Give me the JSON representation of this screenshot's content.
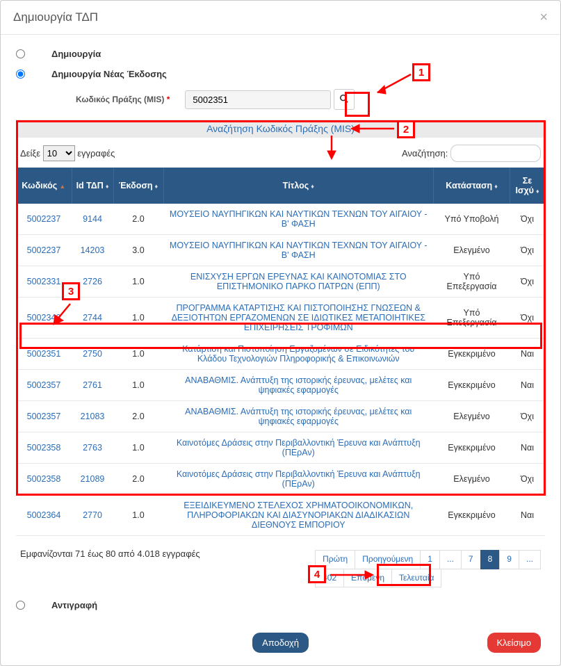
{
  "modal": {
    "title": "Δημιουργία ΤΔΠ",
    "close_glyph": "×"
  },
  "radios": {
    "create_label": "Δημιουργία",
    "new_version_label": "Δημιουργία Νέας Έκδοσης",
    "copy_label": "Αντιγραφή"
  },
  "mis": {
    "label": "Κωδικός Πράξης (MIS)",
    "required_star": "*",
    "value": "5002351",
    "search_icon": "🔍"
  },
  "section": {
    "search_link": "Αναζήτηση Κωδικός Πράξης (MIS)"
  },
  "controls": {
    "show_prefix": "Δείξε",
    "show_count": "10",
    "show_suffix": "εγγραφές",
    "search_label": "Αναζήτηση:"
  },
  "table": {
    "headers": {
      "code": "Κωδικός",
      "id": "Id ΤΔΠ",
      "version": "Έκδοση",
      "title": "Τίτλος",
      "status": "Κατάσταση",
      "valid": "Σε Ισχύ"
    },
    "rows": [
      {
        "code": "5002237",
        "id": "9144",
        "version": "2.0",
        "title": "ΜΟΥΣΕΙΟ ΝΑΥΠΗΓΙΚΩΝ ΚΑΙ ΝΑΥΤΙΚΩΝ ΤΕΧΝΩΝ ΤΟΥ ΑΙΓΑΙΟΥ - Β' ΦΑΣΗ",
        "status": "Υπό Υποβολή",
        "valid": "Όχι"
      },
      {
        "code": "5002237",
        "id": "14203",
        "version": "3.0",
        "title": "ΜΟΥΣΕΙΟ ΝΑΥΠΗΓΙΚΩΝ ΚΑΙ ΝΑΥΤΙΚΩΝ ΤΕΧΝΩΝ ΤΟΥ ΑΙΓΑΙΟΥ - Β' ΦΑΣΗ",
        "status": "Ελεγμένο",
        "valid": "Όχι"
      },
      {
        "code": "5002331",
        "id": "2726",
        "version": "1.0",
        "title": "ΕΝΙΣΧΥΣΗ ΕΡΓΩΝ ΕΡΕΥΝΑΣ ΚΑΙ ΚΑΙΝΟΤΟΜΙΑΣ ΣΤΟ ΕΠΙΣΤΗΜΟΝΙΚΟ ΠΑΡΚΟ ΠΑΤΡΩΝ (ΕΠΠ)",
        "status": "Υπό Επεξεργασία",
        "valid": "Όχι"
      },
      {
        "code": "5002346",
        "id": "2744",
        "version": "1.0",
        "title": "ΠΡΟΓΡΑΜΜΑ ΚΑΤΑΡΤΙΣΗΣ ΚΑΙ ΠΙΣΤΟΠΟΙΗΣΗΣ ΓΝΩΣΕΩΝ & ΔΕΞΙΟΤΗΤΩΝ ΕΡΓΑΖΟΜΕΝΩΝ ΣΕ ΙΔΙΩΤΙΚΕΣ ΜΕΤΑΠΟΙΗΤΙΚΕΣ ΕΠΙΧΕΙΡΗΣΕΙΣ ΤΡΟΦΙΜΩΝ",
        "status": "Υπό Επεξεργασία",
        "valid": "Όχι"
      },
      {
        "code": "5002351",
        "id": "2750",
        "version": "1.0",
        "title": "Κατάρτιση και Πιστοποίηση Εργαζομένων σε Ειδικότητες του Κλάδου Τεχνολογιών Πληροφορικής & Επικοινωνιών",
        "status": "Εγκεκριμένο",
        "valid": "Ναι"
      },
      {
        "code": "5002357",
        "id": "2761",
        "version": "1.0",
        "title": "ΑΝΑΒΑΘΜΙΣ. Ανάπτυξη της ιστορικής έρευνας, μελέτες και ψηφιακές εφαρμογές",
        "status": "Εγκεκριμένο",
        "valid": "Ναι"
      },
      {
        "code": "5002357",
        "id": "21083",
        "version": "2.0",
        "title": "ΑΝΑΒΑΘΜΙΣ. Ανάπτυξη της ιστορικής έρευνας, μελέτες και ψηφιακές εφαρμογές",
        "status": "Ελεγμένο",
        "valid": "Όχι"
      },
      {
        "code": "5002358",
        "id": "2763",
        "version": "1.0",
        "title": "Καινοτόμες Δράσεις στην Περιβαλλοντική Έρευνα και Ανάπτυξη (ΠΕρΑν)",
        "status": "Εγκεκριμένο",
        "valid": "Ναι"
      },
      {
        "code": "5002358",
        "id": "21089",
        "version": "2.0",
        "title": "Καινοτόμες Δράσεις στην Περιβαλλοντική Έρευνα και Ανάπτυξη (ΠΕρΑν)",
        "status": "Ελεγμένο",
        "valid": "Όχι"
      },
      {
        "code": "5002364",
        "id": "2770",
        "version": "1.0",
        "title": "ΕΞΕΙΔΙΚΕΥΜΕΝΟ ΣΤΕΛΕΧΟΣ ΧΡΗΜΑΤΟΟΙΚΟΝΟΜΙΚΩΝ, ΠΛΗΡΟΦΟΡΙΑΚΩΝ ΚΑΙ ΔΙΑΣΥΝΟΡΙΑΚΩΝ ΔΙΑΔΙΚΑΣΙΩΝ ΔΙΕΘΝΟΥΣ ΕΜΠΟΡΙΟΥ",
        "status": "Εγκεκριμένο",
        "valid": "Ναι"
      }
    ]
  },
  "footer": {
    "info": "Εμφανίζονται 71 έως 80 από 4.018 εγγραφές",
    "pagination": {
      "first": "Πρώτη",
      "prev": "Προηγούμενη",
      "p1": "1",
      "dots1": "...",
      "p7": "7",
      "p8": "8",
      "p9": "9",
      "dots2": "...",
      "p402": "402",
      "next": "Επόμενη",
      "last": "Τελευταία"
    }
  },
  "buttons": {
    "accept": "Αποδοχή",
    "close": "Κλείσιμο"
  },
  "annotations": {
    "n1": "1",
    "n2": "2",
    "n3": "3",
    "n4": "4"
  },
  "colors": {
    "header_bg": "#2c5885",
    "link": "#2a6db8",
    "danger": "#e53935",
    "annot": "#ff0000"
  }
}
